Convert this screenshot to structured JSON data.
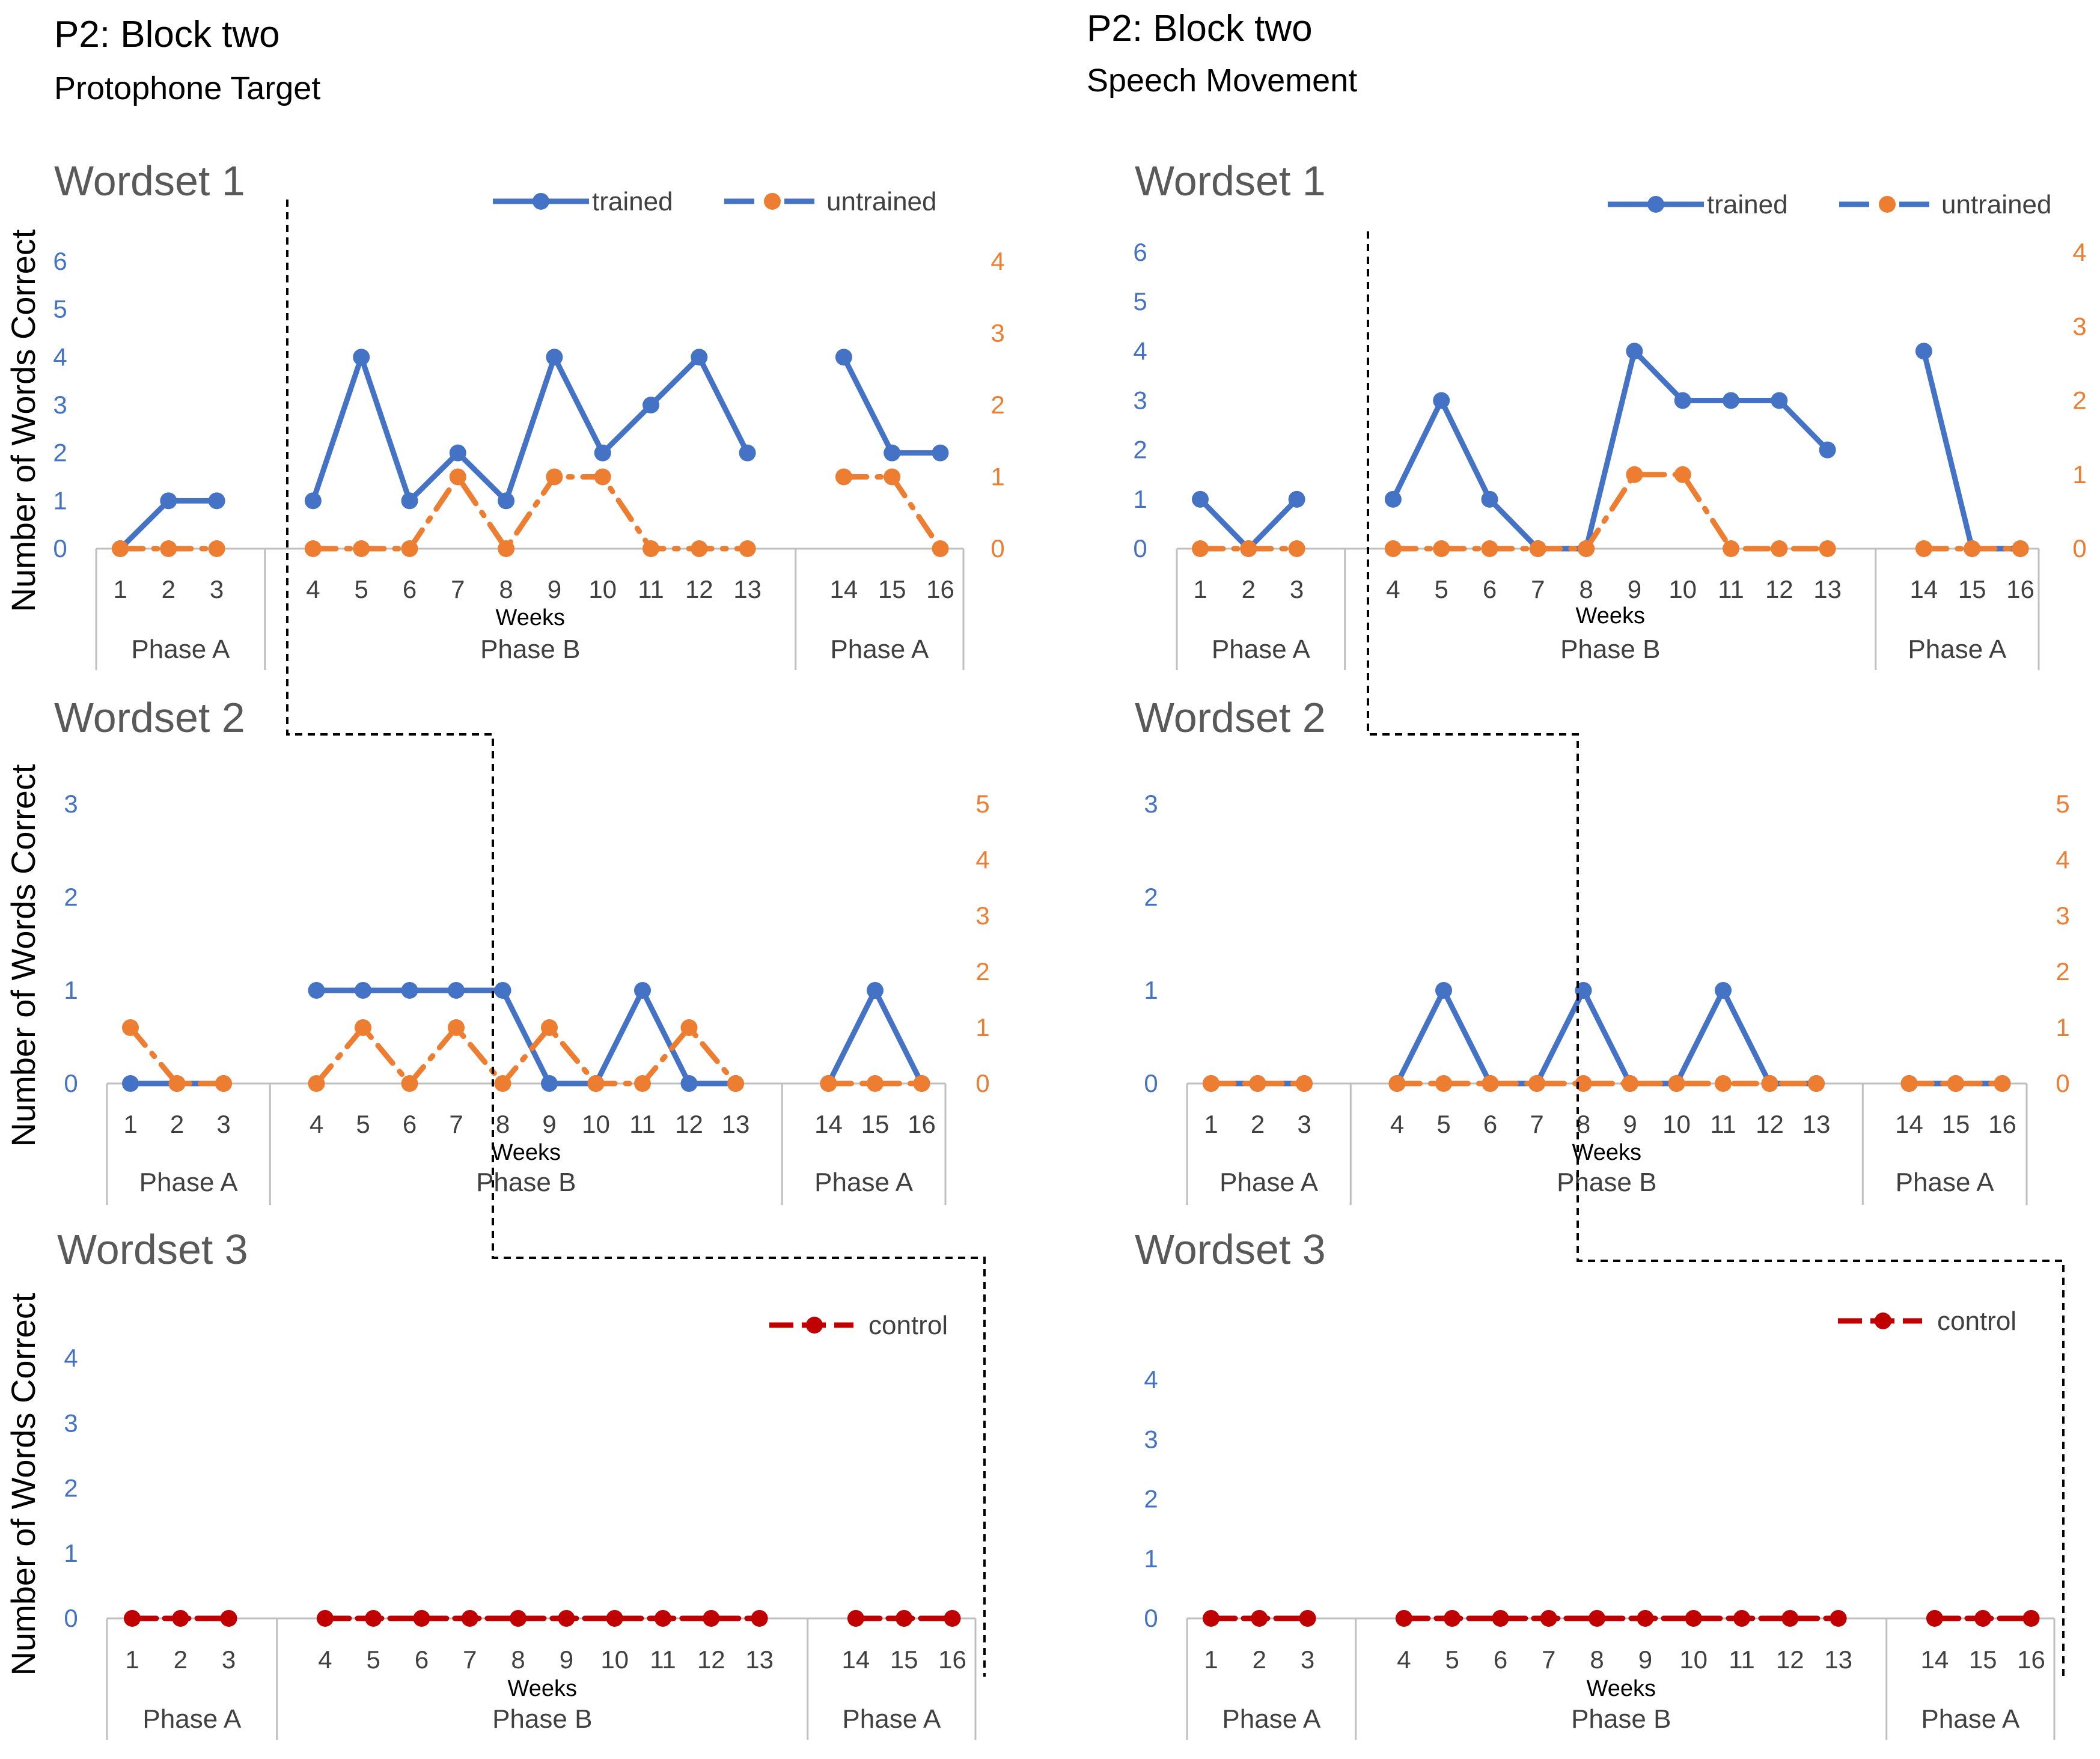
{
  "panels": [
    {
      "title": "P2: Block two",
      "subtitle": "Protophone Target"
    },
    {
      "title": "P2: Block two",
      "subtitle": "Speech Movement"
    }
  ],
  "legend": {
    "trained": "trained",
    "untrained": "untrained",
    "control": "control"
  },
  "colors": {
    "trained": "#4472C4",
    "untrained": "#ED7D31",
    "control": "#C00000",
    "axis": "#BFBFBF",
    "label": "#404040",
    "divider": "#000000"
  },
  "phase_labels": [
    "Phase A",
    "Phase B",
    "Phase A"
  ],
  "chart_data": [
    {
      "type": "line",
      "panel": "Protophone Target",
      "title": "Wordset 1",
      "xlabel": "Weeks",
      "ylabel": "Number of Words Correct",
      "categories": [
        1,
        2,
        3,
        4,
        5,
        6,
        7,
        8,
        9,
        10,
        11,
        12,
        13,
        14,
        15,
        16
      ],
      "phase_groups": [
        {
          "label": "Phase A",
          "weeks": [
            1,
            2,
            3
          ]
        },
        {
          "label": "Phase B",
          "weeks": [
            4,
            5,
            6,
            7,
            8,
            9,
            10,
            11,
            12,
            13
          ]
        },
        {
          "label": "Phase A",
          "weeks": [
            14,
            15,
            16
          ]
        }
      ],
      "ylim": [
        0,
        6
      ],
      "ylim_right": [
        0,
        4
      ],
      "yticks": [
        0,
        1,
        2,
        3,
        4,
        5,
        6
      ],
      "yticks_right": [
        0,
        1,
        2,
        3,
        4
      ],
      "phase_change_after_week": 3,
      "series": [
        {
          "name": "trained",
          "axis": "left",
          "values": [
            0,
            1,
            1,
            1,
            4,
            1,
            2,
            1,
            4,
            2,
            3,
            4,
            2,
            4,
            2,
            2
          ]
        },
        {
          "name": "untrained",
          "axis": "right",
          "values": [
            0,
            0,
            0,
            0,
            0,
            0,
            1,
            0,
            1,
            1,
            0,
            0,
            0,
            1,
            1,
            0
          ]
        }
      ]
    },
    {
      "type": "line",
      "panel": "Protophone Target",
      "title": "Wordset 2",
      "xlabel": "Weeks",
      "ylabel": "Number of Words Correct",
      "categories": [
        1,
        2,
        3,
        4,
        5,
        6,
        7,
        8,
        9,
        10,
        11,
        12,
        13,
        14,
        15,
        16
      ],
      "phase_groups": [
        {
          "label": "Phase A",
          "weeks": [
            1,
            2,
            3
          ]
        },
        {
          "label": "Phase B",
          "weeks": [
            4,
            5,
            6,
            7,
            8,
            9,
            10,
            11,
            12,
            13
          ]
        },
        {
          "label": "Phase A",
          "weeks": [
            14,
            15,
            16
          ]
        }
      ],
      "ylim": [
        0,
        3
      ],
      "ylim_right": [
        0,
        5
      ],
      "yticks": [
        0,
        1,
        2,
        3
      ],
      "yticks_right": [
        0,
        1,
        2,
        3,
        4,
        5
      ],
      "phase_change_after_week": 7.5,
      "series": [
        {
          "name": "trained",
          "axis": "left",
          "values": [
            0,
            0,
            0,
            1,
            1,
            1,
            1,
            1,
            0,
            0,
            1,
            0,
            0,
            0,
            1,
            0
          ]
        },
        {
          "name": "untrained",
          "axis": "right",
          "values": [
            1,
            0,
            0,
            0,
            1,
            0,
            1,
            0,
            1,
            0,
            0,
            1,
            0,
            0,
            0,
            0
          ]
        }
      ]
    },
    {
      "type": "line",
      "panel": "Protophone Target",
      "title": "Wordset 3",
      "xlabel": "Weeks",
      "ylabel": "Number of Words Correct",
      "categories": [
        1,
        2,
        3,
        4,
        5,
        6,
        7,
        8,
        9,
        10,
        11,
        12,
        13,
        14,
        15,
        16
      ],
      "phase_groups": [
        {
          "label": "Phase A",
          "weeks": [
            1,
            2,
            3
          ]
        },
        {
          "label": "Phase B",
          "weeks": [
            4,
            5,
            6,
            7,
            8,
            9,
            10,
            11,
            12,
            13
          ]
        },
        {
          "label": "Phase A",
          "weeks": [
            14,
            15,
            16
          ]
        }
      ],
      "ylim": [
        0,
        4
      ],
      "yticks": [
        0,
        1,
        2,
        3,
        4
      ],
      "phase_change_after_week": 16,
      "series": [
        {
          "name": "control",
          "axis": "left",
          "values": [
            0,
            0,
            0,
            0,
            0,
            0,
            0,
            0,
            0,
            0,
            0,
            0,
            0,
            0,
            0,
            0
          ]
        }
      ]
    },
    {
      "type": "line",
      "panel": "Speech Movement",
      "title": "Wordset 1",
      "xlabel": "Weeks",
      "ylabel": "",
      "categories": [
        1,
        2,
        3,
        4,
        5,
        6,
        7,
        8,
        9,
        10,
        11,
        12,
        13,
        14,
        15,
        16
      ],
      "phase_groups": [
        {
          "label": "Phase A",
          "weeks": [
            1,
            2,
            3
          ]
        },
        {
          "label": "Phase B",
          "weeks": [
            4,
            5,
            6,
            7,
            8,
            9,
            10,
            11,
            12,
            13
          ]
        },
        {
          "label": "Phase A",
          "weeks": [
            14,
            15,
            16
          ]
        }
      ],
      "ylim": [
        0,
        6
      ],
      "ylim_right": [
        0,
        4
      ],
      "yticks": [
        0,
        1,
        2,
        3,
        4,
        5,
        6
      ],
      "yticks_right": [
        0,
        1,
        2,
        3,
        4
      ],
      "phase_change_after_week": 3,
      "series": [
        {
          "name": "trained",
          "axis": "left",
          "values": [
            1,
            0,
            1,
            1,
            3,
            1,
            0,
            0,
            4,
            3,
            3,
            3,
            2,
            4,
            0,
            0
          ]
        },
        {
          "name": "untrained",
          "axis": "right",
          "values": [
            0,
            0,
            0,
            0,
            0,
            0,
            0,
            0,
            1,
            1,
            0,
            0,
            0,
            0,
            0,
            0
          ]
        }
      ]
    },
    {
      "type": "line",
      "panel": "Speech Movement",
      "title": "Wordset 2",
      "xlabel": "Weeks",
      "ylabel": "",
      "categories": [
        1,
        2,
        3,
        4,
        5,
        6,
        7,
        8,
        9,
        10,
        11,
        12,
        13,
        14,
        15,
        16
      ],
      "phase_groups": [
        {
          "label": "Phase A",
          "weeks": [
            1,
            2,
            3
          ]
        },
        {
          "label": "Phase B",
          "weeks": [
            4,
            5,
            6,
            7,
            8,
            9,
            10,
            11,
            12,
            13
          ]
        },
        {
          "label": "Phase A",
          "weeks": [
            14,
            15,
            16
          ]
        }
      ],
      "ylim": [
        0,
        3
      ],
      "ylim_right": [
        0,
        5
      ],
      "yticks": [
        0,
        1,
        2,
        3
      ],
      "yticks_right": [
        0,
        1,
        2,
        3,
        4,
        5
      ],
      "phase_change_after_week": 8,
      "series": [
        {
          "name": "trained",
          "axis": "left",
          "values": [
            0,
            0,
            0,
            0,
            1,
            0,
            0,
            1,
            0,
            0,
            1,
            0,
            0,
            0,
            0,
            0
          ]
        },
        {
          "name": "untrained",
          "axis": "right",
          "values": [
            0,
            0,
            0,
            0,
            0,
            0,
            0,
            0,
            0,
            0,
            0,
            0,
            0,
            0,
            0,
            0
          ]
        }
      ]
    },
    {
      "type": "line",
      "panel": "Speech Movement",
      "title": "Wordset 3",
      "xlabel": "Weeks",
      "ylabel": "",
      "categories": [
        1,
        2,
        3,
        4,
        5,
        6,
        7,
        8,
        9,
        10,
        11,
        12,
        13,
        14,
        15,
        16
      ],
      "phase_groups": [
        {
          "label": "Phase A",
          "weeks": [
            1,
            2,
            3
          ]
        },
        {
          "label": "Phase B",
          "weeks": [
            4,
            5,
            6,
            7,
            8,
            9,
            10,
            11,
            12,
            13
          ]
        },
        {
          "label": "Phase A",
          "weeks": [
            14,
            15,
            16
          ]
        }
      ],
      "ylim": [
        0,
        4
      ],
      "yticks": [
        0,
        1,
        2,
        3,
        4
      ],
      "phase_change_after_week": 16,
      "series": [
        {
          "name": "control",
          "axis": "left",
          "values": [
            0,
            0,
            0,
            0,
            0,
            0,
            0,
            0,
            0,
            0,
            0,
            0,
            0,
            0,
            0,
            0
          ]
        }
      ]
    }
  ]
}
